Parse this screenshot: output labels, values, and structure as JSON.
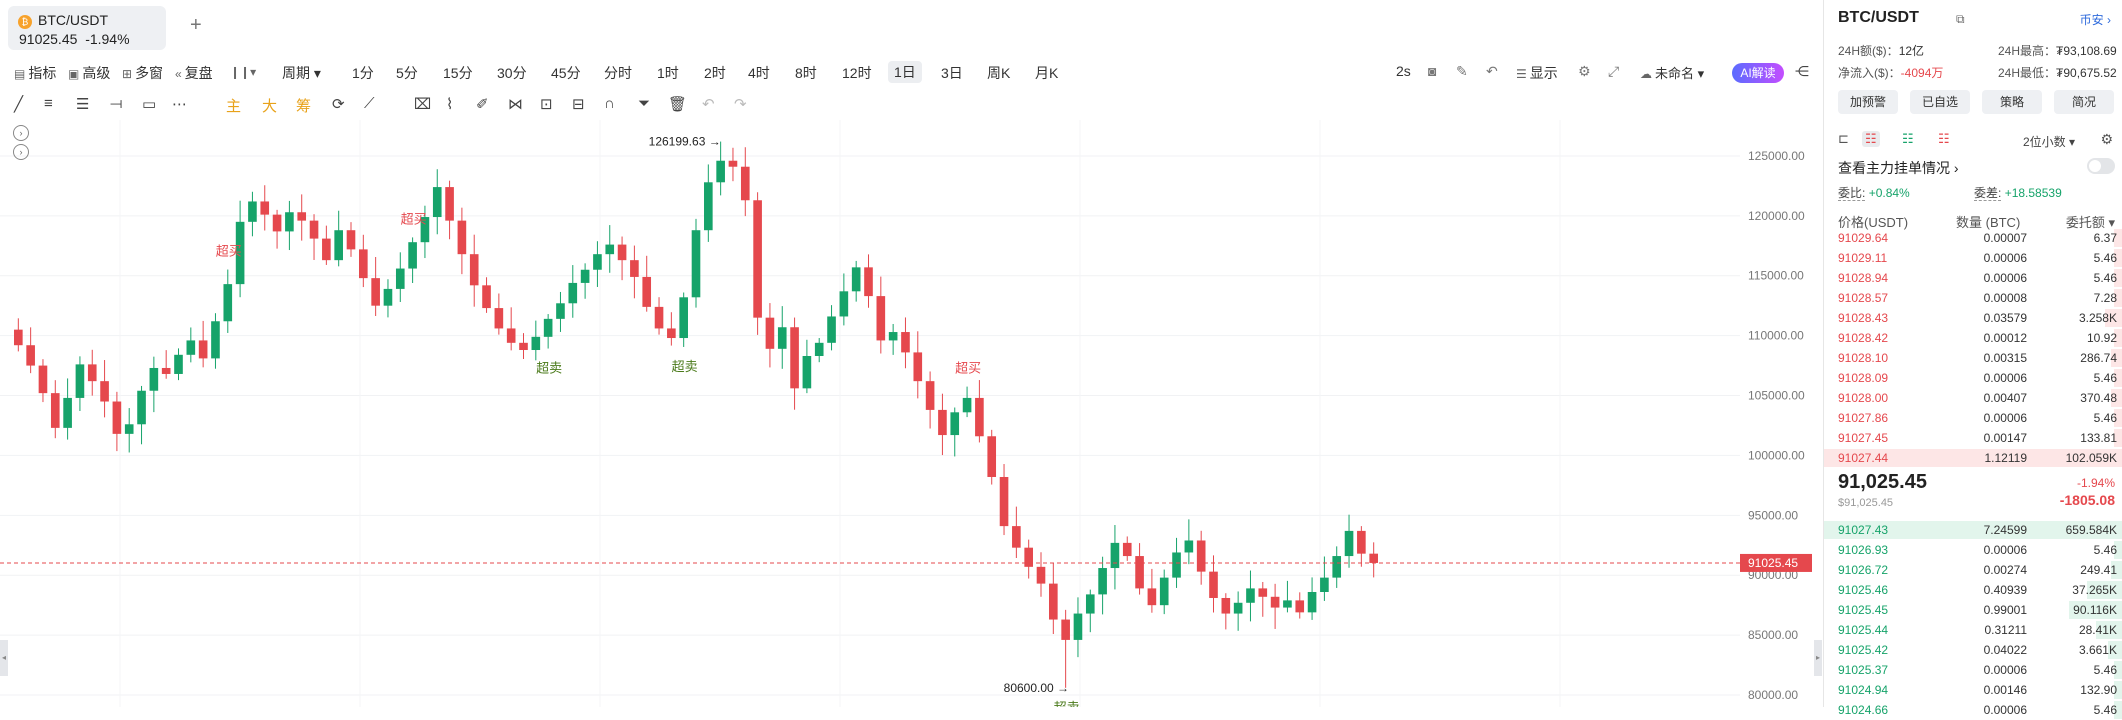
{
  "tab": {
    "coin_icon": "bitcoin-icon",
    "symbol": "BTC/USDT",
    "price": "91025.45",
    "change": "-1.94%"
  },
  "toolbar": {
    "indicators": "指标",
    "advanced": "高级",
    "multi_window": "多窗",
    "replay": "复盘",
    "period_label": "周期",
    "periods": [
      "1分",
      "5分",
      "15分",
      "30分",
      "45分",
      "分时",
      "1时",
      "2时",
      "4时",
      "8时",
      "12时",
      "1日",
      "3日",
      "周K",
      "月K"
    ],
    "active_period": "1日",
    "right": {
      "interval": "2s",
      "display": "显示",
      "layout_name": "未命名",
      "ai": "AI解读"
    }
  },
  "drawbar": {
    "main": "主",
    "big": "大",
    "chip": "筹"
  },
  "chart": {
    "last_price_label": "91025.45",
    "high_label": "126199.63",
    "low_label": "80600.00",
    "overbought": "超买",
    "oversold": "超卖",
    "y_ticks": [
      "125000.00",
      "120000.00",
      "115000.00",
      "110000.00",
      "105000.00",
      "100000.00",
      "95000.00",
      "90000.00",
      "85000.00",
      "80000.00"
    ],
    "colors": {
      "up": "#16a36a",
      "down": "#e5484d",
      "price_line": "#e5484d"
    }
  },
  "chart_data": {
    "type": "candlestick",
    "interval": "1日",
    "ylim": [
      79000,
      128000
    ],
    "last_price": 91025.45,
    "annotated_high": 126199.63,
    "annotated_low": 80600.0,
    "close_path": [
      110500,
      109200,
      107500,
      105200,
      102300,
      104800,
      107600,
      106200,
      104500,
      101800,
      102600,
      105400,
      107300,
      106800,
      108400,
      109600,
      108100,
      111200,
      114300,
      119500,
      121200,
      120100,
      118700,
      120300,
      119600,
      118100,
      116300,
      118800,
      117200,
      114800,
      112500,
      113900,
      115600,
      117800,
      119900,
      122400,
      119600,
      116800,
      114200,
      112300,
      110600,
      109400,
      108800,
      109900,
      111400,
      112700,
      114400,
      115500,
      116800,
      117600,
      116300,
      114900,
      112400,
      110600,
      109800,
      113200,
      118800,
      122800,
      124600,
      124100,
      121300,
      111500,
      108900,
      110700,
      105600,
      108300,
      109400,
      111600,
      113700,
      115700,
      113300,
      109600,
      110300,
      108600,
      106200,
      103800,
      101700,
      103600,
      104800,
      101600,
      98200,
      94100,
      92300,
      90700,
      89300,
      86300,
      84600,
      86800,
      88400,
      90600,
      92700,
      91600,
      88900,
      87500,
      89800,
      91900,
      92900,
      90300,
      88100,
      86800,
      87700,
      88900,
      88200,
      87300,
      87900,
      86900,
      88600,
      89800,
      91600,
      93700,
      91800,
      91025
    ]
  },
  "panel": {
    "symbol": "BTC/USDT",
    "exchange": "币安",
    "volume_label": "24H额($)：",
    "volume": "12亿",
    "high_label": "24H最高：",
    "high": "₮93,108.69",
    "netflow_label": "净流入($)：",
    "netflow": "-4094万",
    "low_label": "24H最低：",
    "low": "₮90,675.52",
    "buttons": [
      "加预警",
      "已自选",
      "策略",
      "简况"
    ],
    "decimals": "2位小数",
    "watch_orders": "查看主力挂单情况",
    "ratio_label": "委比:",
    "ratio": "+0.84%",
    "diff_label": "委差:",
    "diff": "+18.58539",
    "headers": {
      "price": "价格(USDT)",
      "qty": "数量 (BTC)",
      "total": "委托额"
    },
    "asks": [
      {
        "price": "91029.64",
        "qty": "0.00007",
        "total": "6.37",
        "fill": 0.03
      },
      {
        "price": "91029.11",
        "qty": "0.00006",
        "total": "5.46",
        "fill": 0.03
      },
      {
        "price": "91028.94",
        "qty": "0.00006",
        "total": "5.46",
        "fill": 0.03
      },
      {
        "price": "91028.57",
        "qty": "0.00008",
        "total": "7.28",
        "fill": 0.03
      },
      {
        "price": "91028.43",
        "qty": "0.03579",
        "total": "3.258K",
        "fill": 0.06
      },
      {
        "price": "91028.42",
        "qty": "0.00012",
        "total": "10.92",
        "fill": 0.03
      },
      {
        "price": "91028.10",
        "qty": "0.00315",
        "total": "286.74",
        "fill": 0.04
      },
      {
        "price": "91028.09",
        "qty": "0.00006",
        "total": "5.46",
        "fill": 0.03
      },
      {
        "price": "91028.00",
        "qty": "0.00407",
        "total": "370.48",
        "fill": 0.04
      },
      {
        "price": "91027.86",
        "qty": "0.00006",
        "total": "5.46",
        "fill": 0.03
      },
      {
        "price": "91027.45",
        "qty": "0.00147",
        "total": "133.81",
        "fill": 0.03
      },
      {
        "price": "91027.44",
        "qty": "1.12119",
        "total": "102.059K",
        "fill": 1.0
      }
    ],
    "mid_price": "91,025.45",
    "mid_usd": "$91,025.45",
    "mid_pct": "-1.94%",
    "mid_change": "-1805.08",
    "bids": [
      {
        "price": "91027.43",
        "qty": "7.24599",
        "total": "659.584K",
        "fill": 1.0
      },
      {
        "price": "91026.93",
        "qty": "0.00006",
        "total": "5.46",
        "fill": 0.03
      },
      {
        "price": "91026.72",
        "qty": "0.00274",
        "total": "249.41",
        "fill": 0.04
      },
      {
        "price": "91025.46",
        "qty": "0.40939",
        "total": "37.265K",
        "fill": 0.12
      },
      {
        "price": "91025.45",
        "qty": "0.99001",
        "total": "90.116K",
        "fill": 0.18
      },
      {
        "price": "91025.44",
        "qty": "0.31211",
        "total": "28.41K",
        "fill": 0.09
      },
      {
        "price": "91025.42",
        "qty": "0.04022",
        "total": "3.661K",
        "fill": 0.05
      },
      {
        "price": "91025.37",
        "qty": "0.00006",
        "total": "5.46",
        "fill": 0.03
      },
      {
        "price": "91024.94",
        "qty": "0.00146",
        "total": "132.90",
        "fill": 0.03
      },
      {
        "price": "91024.66",
        "qty": "0.00006",
        "total": "5.46",
        "fill": 0.03
      }
    ]
  }
}
